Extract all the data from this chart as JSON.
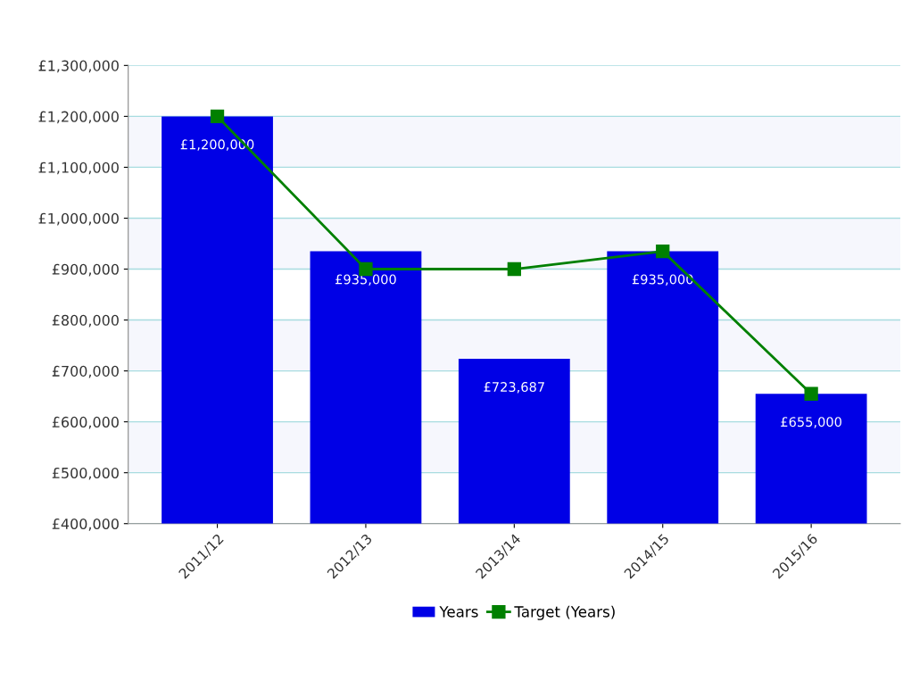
{
  "chart_data": {
    "type": "bar",
    "categories": [
      "2011/12",
      "2012/13",
      "2013/14",
      "2014/15",
      "2015/16"
    ],
    "series": [
      {
        "name": "Years",
        "color": "#0000e6",
        "values": [
          1200000,
          935000,
          723687,
          935000,
          655000
        ],
        "value_labels": [
          "£1,200,000",
          "£935,000",
          "£723,687",
          "£935,000",
          "£655,000"
        ]
      },
      {
        "name": "Target (Years)",
        "type": "line",
        "color": "#008000",
        "marker": "square",
        "values": [
          1200000,
          900000,
          900000,
          935000,
          655000
        ]
      }
    ],
    "ylim": [
      400000,
      1300000
    ],
    "yticks": [
      {
        "value": 400000,
        "label": "£400,000"
      },
      {
        "value": 500000,
        "label": "£500,000"
      },
      {
        "value": 600000,
        "label": "£600,000"
      },
      {
        "value": 700000,
        "label": "£700,000"
      },
      {
        "value": 800000,
        "label": "£800,000"
      },
      {
        "value": 900000,
        "label": "£900,000"
      },
      {
        "value": 1000000,
        "label": "£1,000,000"
      },
      {
        "value": 1100000,
        "label": "£1,100,000"
      },
      {
        "value": 1200000,
        "label": "£1,200,000"
      },
      {
        "value": 1300000,
        "label": "£1,300,000"
      }
    ],
    "grid": "y",
    "legend": "bottom"
  }
}
